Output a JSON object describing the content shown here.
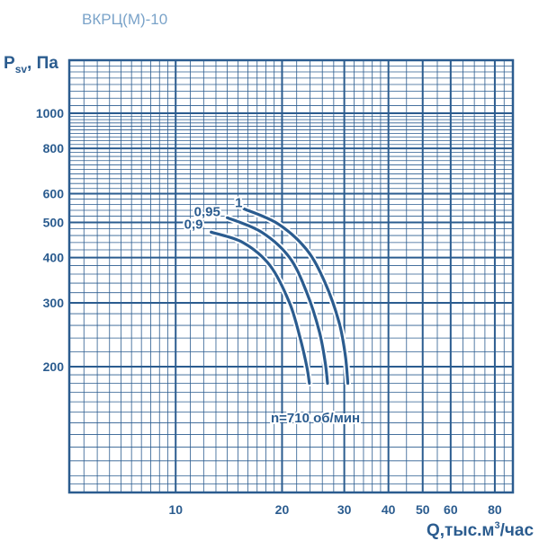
{
  "header": {
    "title": "ВКРЦ(М)-10"
  },
  "colors": {
    "ink": "#2b5c8f",
    "title": "#7aa3c9",
    "background": "#ffffff"
  },
  "chart_data": {
    "type": "line",
    "x_scale": "log",
    "y_scale": "log",
    "grid": true,
    "xlim": [
      5,
      90
    ],
    "ylim": [
      90,
      1400
    ],
    "ylabel": {
      "main": "P",
      "sub": "sv",
      "rest": ", Па"
    },
    "xlabel": {
      "main": "Q,тыс.м",
      "sup": "3",
      "rest": "/час"
    },
    "x_ticks": [
      {
        "value": 10,
        "label": "10"
      },
      {
        "value": 20,
        "label": "20"
      },
      {
        "value": 30,
        "label": "30"
      },
      {
        "value": 40,
        "label": "40"
      },
      {
        "value": 50,
        "label": "50"
      },
      {
        "value": 60,
        "label": "60"
      },
      {
        "value": 80,
        "label": "80"
      }
    ],
    "y_ticks": [
      {
        "value": 200,
        "label": "200"
      },
      {
        "value": 300,
        "label": "300"
      },
      {
        "value": 400,
        "label": "400"
      },
      {
        "value": 500,
        "label": "500"
      },
      {
        "value": 600,
        "label": "600"
      },
      {
        "value": 800,
        "label": "800"
      },
      {
        "value": 1000,
        "label": "1000"
      }
    ],
    "series": [
      {
        "name": "0,9",
        "x": [
          12.6,
          15.5,
          18.5,
          21.0,
          22.5,
          23.5,
          23.9
        ],
        "y": [
          470,
          440,
          380,
          300,
          240,
          200,
          180
        ]
      },
      {
        "name": "0,95",
        "x": [
          14.0,
          17.5,
          21.0,
          23.5,
          25.5,
          26.5,
          26.9
        ],
        "y": [
          515,
          470,
          400,
          320,
          250,
          205,
          180
        ]
      },
      {
        "name": "1",
        "x": [
          15.6,
          19.5,
          23.5,
          26.5,
          29.0,
          30.2,
          30.7
        ],
        "y": [
          545,
          495,
          420,
          340,
          265,
          215,
          180
        ]
      }
    ],
    "annotation": "n=710 об/мин"
  }
}
